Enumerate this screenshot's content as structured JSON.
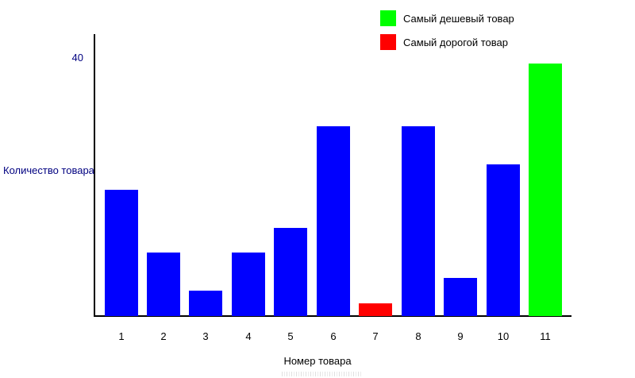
{
  "colors": {
    "default_bar": "#0000ff",
    "cheapest_bar": "#00ff00",
    "most_expensive_bar": "#ff0000",
    "axis_text": "#000080",
    "tick_text": "#000000",
    "axis_line": "#000000"
  },
  "chart_data": {
    "type": "bar",
    "categories": [
      "1",
      "2",
      "3",
      "4",
      "5",
      "6",
      "7",
      "8",
      "9",
      "10",
      "11"
    ],
    "values": [
      20,
      10,
      4,
      10,
      14,
      30,
      2,
      30,
      6,
      24,
      40
    ],
    "bar_colors": [
      "#0000ff",
      "#0000ff",
      "#0000ff",
      "#0000ff",
      "#0000ff",
      "#0000ff",
      "#ff0000",
      "#0000ff",
      "#0000ff",
      "#0000ff",
      "#00ff00"
    ],
    "title": "",
    "xlabel": "Номер товара",
    "ylabel": "Количество товара",
    "y_tick_labels": [
      "40"
    ],
    "y_tick_values": [
      40
    ],
    "ylim": [
      0,
      40
    ],
    "grid": false,
    "legend_position": "top-right",
    "legend": [
      {
        "label": "Самый дешевый товар",
        "color": "#00ff00"
      },
      {
        "label": "Самый дорогой товар",
        "color": "#ff0000"
      }
    ]
  }
}
